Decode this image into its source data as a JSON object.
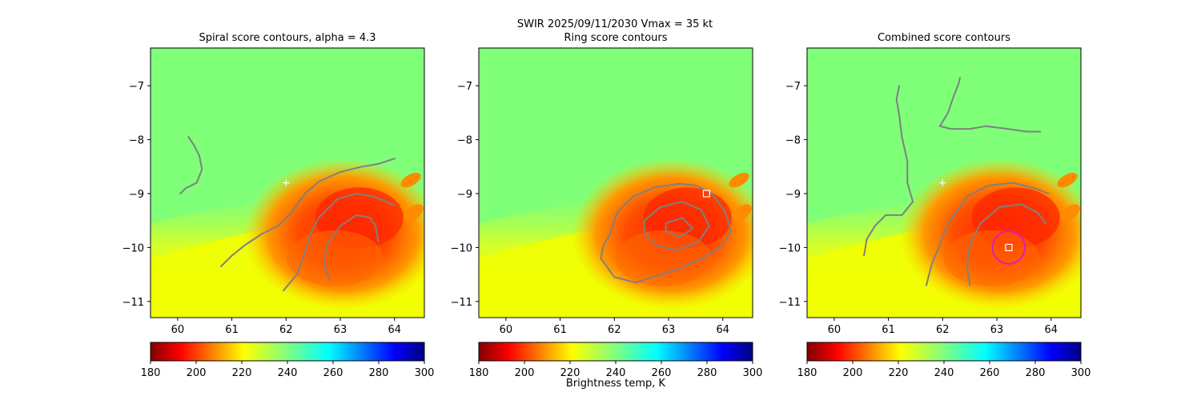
{
  "figure": {
    "suptitle": "SWIR  2025/09/11/2030    Vmax = 35 kt",
    "colorbar_label": "Brightness temp, K"
  },
  "chart_data": [
    {
      "type": "heatmap",
      "title": "Spiral score contours, alpha =  4.3",
      "xlim": [
        59.5,
        64.55
      ],
      "ylim": [
        -11.3,
        -6.3
      ],
      "xticks": [
        60,
        61,
        62,
        63,
        64
      ],
      "yticks": [
        -7,
        -8,
        -9,
        -10,
        -11
      ],
      "xticklabels": [
        "60",
        "61",
        "62",
        "63",
        "64"
      ],
      "yticklabels": [
        "−7",
        "−8",
        "−9",
        "−10",
        "−11"
      ],
      "colormap": "jet_r",
      "colorbar": {
        "ticks": [
          180,
          200,
          220,
          240,
          260,
          280,
          300
        ],
        "ticklabels": [
          "180",
          "200",
          "220",
          "240",
          "260",
          "280",
          "300"
        ],
        "range": [
          180,
          300
        ]
      },
      "storm_center_marker": {
        "x": 62.0,
        "y": -8.8,
        "symbol": "+",
        "color": "#ffffff"
      },
      "contours": [
        [
          [
            60.05,
            -9.0
          ],
          [
            60.15,
            -8.9
          ],
          [
            60.35,
            -8.8
          ],
          [
            60.45,
            -8.55
          ],
          [
            60.4,
            -8.3
          ],
          [
            60.3,
            -8.1
          ],
          [
            60.2,
            -7.95
          ]
        ],
        [
          [
            60.8,
            -10.35
          ],
          [
            61.0,
            -10.15
          ],
          [
            61.25,
            -9.95
          ],
          [
            61.55,
            -9.75
          ],
          [
            61.85,
            -9.6
          ],
          [
            62.1,
            -9.35
          ],
          [
            62.35,
            -9.0
          ],
          [
            62.6,
            -8.78
          ],
          [
            63.0,
            -8.6
          ],
          [
            63.4,
            -8.5
          ],
          [
            63.7,
            -8.45
          ],
          [
            64.0,
            -8.35
          ]
        ],
        [
          [
            61.95,
            -10.8
          ],
          [
            62.2,
            -10.5
          ],
          [
            62.35,
            -10.1
          ],
          [
            62.45,
            -9.75
          ],
          [
            62.6,
            -9.45
          ],
          [
            62.95,
            -9.1
          ],
          [
            63.3,
            -9.0
          ],
          [
            63.6,
            -9.05
          ],
          [
            63.85,
            -9.15
          ],
          [
            64.0,
            -9.22
          ]
        ],
        [
          [
            62.8,
            -10.6
          ],
          [
            62.7,
            -10.3
          ],
          [
            62.75,
            -9.95
          ],
          [
            63.0,
            -9.6
          ],
          [
            63.3,
            -9.4
          ],
          [
            63.55,
            -9.45
          ],
          [
            63.65,
            -9.6
          ],
          [
            63.7,
            -9.9
          ]
        ]
      ]
    },
    {
      "type": "heatmap",
      "title": "Ring score contours",
      "xlim": [
        59.5,
        64.55
      ],
      "ylim": [
        -11.3,
        -6.3
      ],
      "xticks": [
        60,
        61,
        62,
        63,
        64
      ],
      "yticks": [
        -7,
        -8,
        -9,
        -10,
        -11
      ],
      "xticklabels": [
        "60",
        "61",
        "62",
        "63",
        "64"
      ],
      "yticklabels": [
        "−7",
        "−8",
        "−9",
        "−10",
        "−11"
      ],
      "colormap": "jet_r",
      "colorbar": {
        "ticks": [
          180,
          200,
          220,
          240,
          260,
          280,
          300
        ],
        "ticklabels": [
          "180",
          "200",
          "220",
          "240",
          "260",
          "280",
          "300"
        ],
        "range": [
          180,
          300
        ]
      },
      "center_marker": {
        "x": 63.7,
        "y": -9.0,
        "symbol": "square",
        "color": "#ffffff"
      },
      "contours": [
        [
          [
            61.9,
            -9.8
          ],
          [
            62.05,
            -9.35
          ],
          [
            62.35,
            -9.05
          ],
          [
            62.75,
            -8.88
          ],
          [
            63.2,
            -8.82
          ],
          [
            63.5,
            -8.85
          ],
          [
            63.8,
            -9.0
          ],
          [
            64.05,
            -9.35
          ],
          [
            64.15,
            -9.7
          ],
          [
            64.0,
            -9.95
          ],
          [
            63.7,
            -10.15
          ],
          [
            63.3,
            -10.35
          ],
          [
            62.85,
            -10.5
          ],
          [
            62.4,
            -10.65
          ],
          [
            62.0,
            -10.55
          ],
          [
            61.75,
            -10.2
          ],
          [
            61.8,
            -9.95
          ],
          [
            61.9,
            -9.8
          ]
        ],
        [
          [
            62.55,
            -9.5
          ],
          [
            62.85,
            -9.25
          ],
          [
            63.25,
            -9.15
          ],
          [
            63.6,
            -9.3
          ],
          [
            63.75,
            -9.6
          ],
          [
            63.55,
            -9.9
          ],
          [
            63.15,
            -10.05
          ],
          [
            62.75,
            -9.95
          ],
          [
            62.55,
            -9.75
          ],
          [
            62.55,
            -9.5
          ]
        ],
        [
          [
            62.95,
            -9.55
          ],
          [
            63.25,
            -9.45
          ],
          [
            63.45,
            -9.65
          ],
          [
            63.2,
            -9.8
          ],
          [
            62.95,
            -9.7
          ],
          [
            62.95,
            -9.55
          ]
        ]
      ]
    },
    {
      "type": "heatmap",
      "title": "Combined score contours",
      "xlim": [
        59.5,
        64.55
      ],
      "ylim": [
        -11.3,
        -6.3
      ],
      "xticks": [
        60,
        61,
        62,
        63,
        64
      ],
      "yticks": [
        -7,
        -8,
        -9,
        -10,
        -11
      ],
      "xticklabels": [
        "60",
        "61",
        "62",
        "63",
        "64"
      ],
      "yticklabels": [
        "−7",
        "−8",
        "−9",
        "−10",
        "−11"
      ],
      "colormap": "jet_r",
      "colorbar": {
        "ticks": [
          180,
          200,
          220,
          240,
          260,
          280,
          300
        ],
        "ticklabels": [
          "180",
          "200",
          "220",
          "240",
          "260",
          "280",
          "300"
        ],
        "range": [
          180,
          300
        ]
      },
      "storm_center_marker": {
        "x": 62.0,
        "y": -8.8,
        "symbol": "+",
        "color": "#ffffff"
      },
      "center_marker": {
        "x": 63.22,
        "y": -10.0,
        "symbol": "square",
        "color": "#ffffff"
      },
      "ring": {
        "x": 63.22,
        "y": -10.0,
        "radius_deg": 0.3,
        "color": "#e020b0"
      },
      "contours": [
        [
          [
            60.55,
            -10.15
          ],
          [
            60.6,
            -9.85
          ],
          [
            60.75,
            -9.6
          ],
          [
            60.95,
            -9.4
          ],
          [
            61.25,
            -9.4
          ],
          [
            61.45,
            -9.15
          ],
          [
            61.35,
            -8.8
          ],
          [
            61.35,
            -8.4
          ],
          [
            61.25,
            -7.95
          ],
          [
            61.2,
            -7.55
          ],
          [
            61.15,
            -7.25
          ],
          [
            61.2,
            -7.0
          ]
        ],
        [
          [
            61.95,
            -7.75
          ],
          [
            62.15,
            -7.8
          ],
          [
            62.5,
            -7.8
          ],
          [
            62.8,
            -7.75
          ],
          [
            63.2,
            -7.8
          ],
          [
            63.55,
            -7.85
          ],
          [
            63.8,
            -7.85
          ]
        ],
        [
          [
            61.95,
            -7.75
          ],
          [
            62.1,
            -7.5
          ],
          [
            62.2,
            -7.2
          ],
          [
            62.3,
            -6.95
          ],
          [
            62.32,
            -6.85
          ]
        ],
        [
          [
            61.7,
            -10.7
          ],
          [
            61.8,
            -10.3
          ],
          [
            61.95,
            -9.95
          ],
          [
            62.1,
            -9.55
          ],
          [
            62.45,
            -9.05
          ],
          [
            62.85,
            -8.85
          ],
          [
            63.3,
            -8.8
          ],
          [
            63.7,
            -8.9
          ],
          [
            63.95,
            -9.0
          ]
        ],
        [
          [
            62.5,
            -10.7
          ],
          [
            62.45,
            -10.35
          ],
          [
            62.5,
            -9.95
          ],
          [
            62.7,
            -9.55
          ],
          [
            63.05,
            -9.25
          ],
          [
            63.45,
            -9.2
          ],
          [
            63.75,
            -9.35
          ],
          [
            63.9,
            -9.55
          ]
        ]
      ]
    }
  ]
}
